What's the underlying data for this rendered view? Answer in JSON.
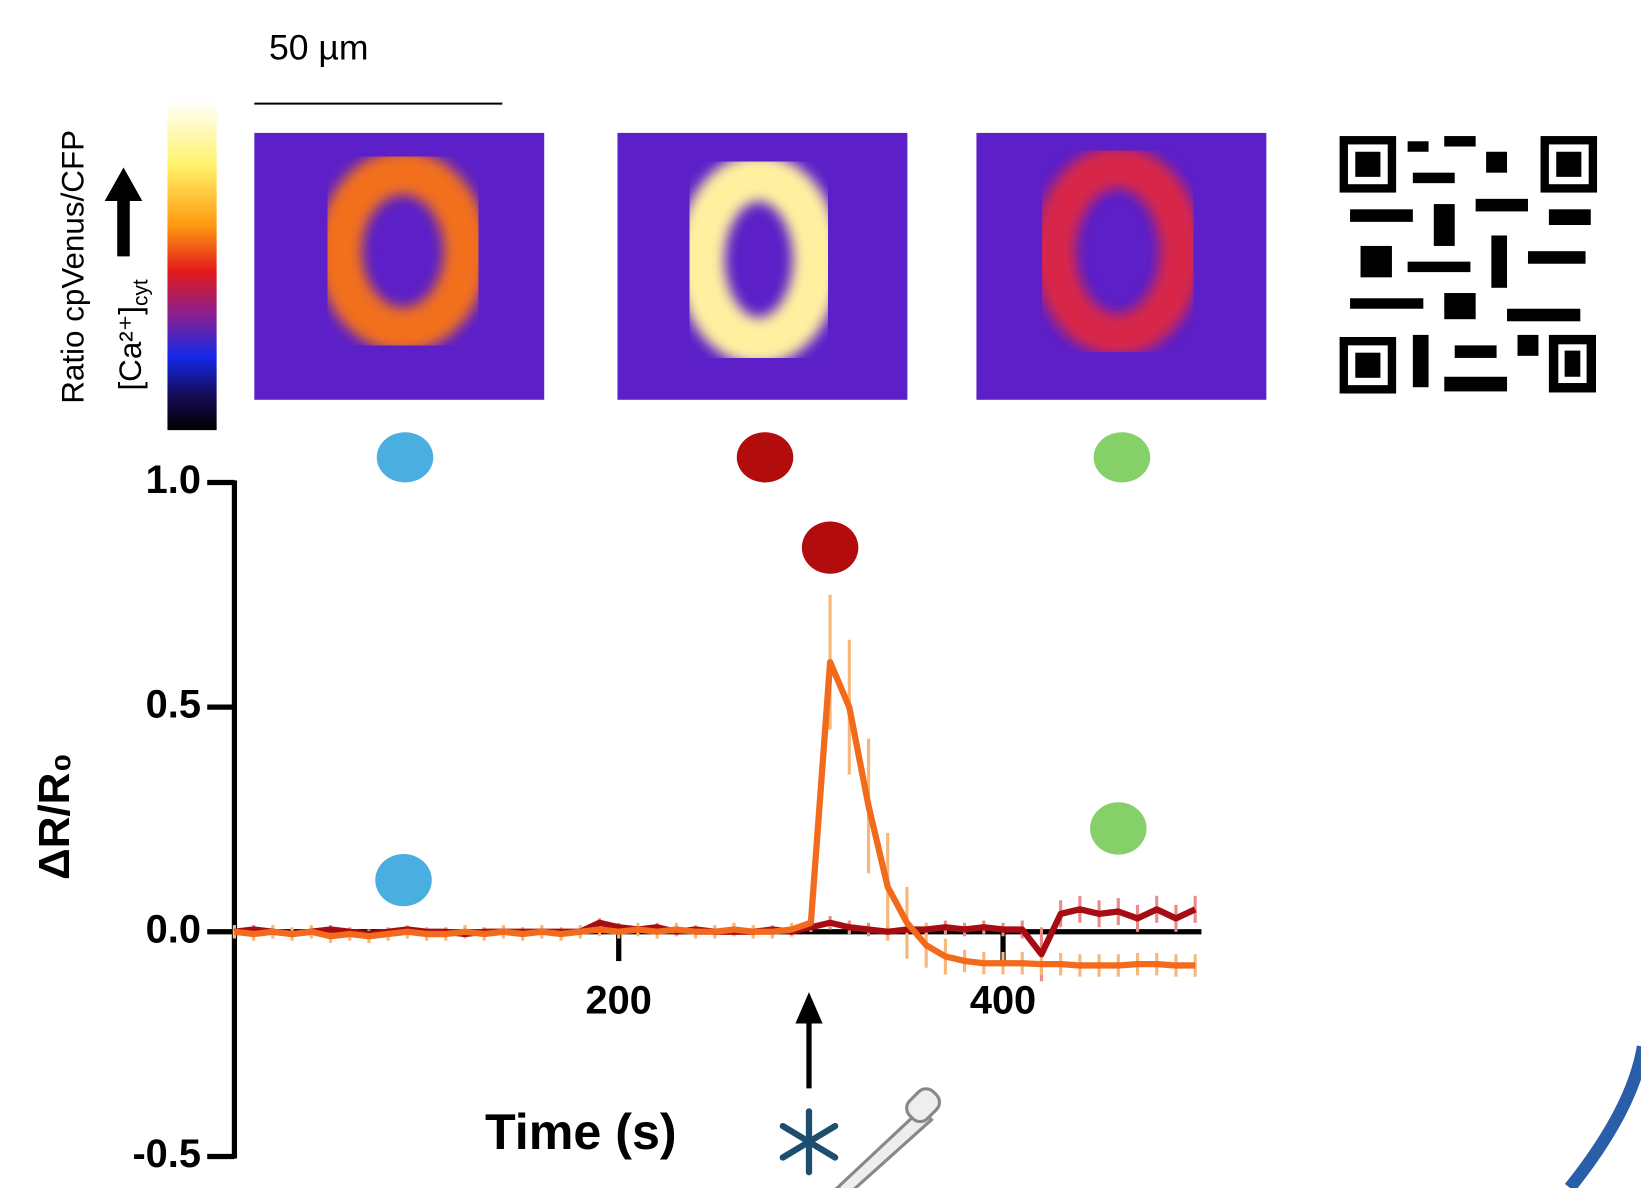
{
  "scale_bar_label": "50 µm",
  "colorbar_label": "Ratio cpVenus/CFP",
  "colorbar_sublabel": {
    "text": "[Ca²⁺]",
    "subscript": "cyt"
  },
  "chart_data": {
    "type": "line",
    "xlabel": "Time (s)",
    "ylabel": "ΔR/R₀",
    "xlim": [
      0,
      500
    ],
    "xticks": [
      200,
      400
    ],
    "ylim": [
      -0.5,
      1.0
    ],
    "yticks": [
      {
        "value": 1.0,
        "label": "1.0"
      },
      0.5,
      {
        "value": 0.0,
        "label": "0.0"
      },
      -0.5
    ],
    "x": [
      0,
      10,
      20,
      30,
      40,
      50,
      60,
      70,
      80,
      90,
      100,
      110,
      120,
      130,
      140,
      150,
      160,
      170,
      180,
      190,
      200,
      210,
      220,
      230,
      240,
      250,
      260,
      270,
      280,
      290,
      300,
      310,
      320,
      330,
      340,
      350,
      360,
      370,
      380,
      390,
      400,
      410,
      420,
      430,
      440,
      450,
      460,
      470,
      480,
      490,
      500
    ],
    "series": [
      {
        "color": "#a50d12",
        "error_color": "#ea8c8c",
        "values": [
          0,
          0.005,
          0,
          -0.005,
          0,
          0.005,
          0,
          -0.005,
          0,
          0.005,
          0,
          0,
          -0.005,
          0,
          0,
          0,
          0,
          0,
          0,
          0.02,
          0.01,
          0.005,
          0.01,
          0,
          0.005,
          0,
          0,
          0,
          0.005,
          0,
          0.01,
          0.02,
          0.01,
          0.005,
          0,
          0.005,
          0.005,
          0.01,
          0.005,
          0.01,
          0.005,
          0.005,
          -0.05,
          0.04,
          0.05,
          0.04,
          0.045,
          0.03,
          0.05,
          0.03,
          0.05
        ],
        "errors": [
          0.01,
          0.01,
          0.01,
          0.01,
          0.01,
          0.01,
          0.01,
          0.01,
          0.01,
          0.01,
          0.01,
          0.01,
          0.01,
          0.01,
          0.01,
          0.01,
          0.01,
          0.01,
          0.01,
          0.01,
          0.01,
          0.01,
          0.01,
          0.01,
          0.01,
          0.01,
          0.01,
          0.01,
          0.01,
          0.01,
          0.01,
          0.015,
          0.015,
          0.015,
          0.015,
          0.015,
          0.015,
          0.015,
          0.015,
          0.015,
          0.015,
          0.02,
          0.06,
          0.03,
          0.03,
          0.03,
          0.03,
          0.03,
          0.03,
          0.03,
          0.03
        ]
      },
      {
        "color": "#f26a1b",
        "error_color": "#f7b77a",
        "values": [
          0,
          -0.005,
          0,
          -0.005,
          0,
          -0.01,
          -0.005,
          -0.01,
          -0.005,
          0,
          -0.005,
          -0.005,
          0,
          -0.005,
          0,
          -0.005,
          0,
          -0.005,
          0,
          0.005,
          0,
          0.005,
          0,
          0.005,
          0,
          0,
          0.005,
          0,
          0,
          0.005,
          0.02,
          0.6,
          0.5,
          0.28,
          0.1,
          0.02,
          -0.03,
          -0.055,
          -0.065,
          -0.07,
          -0.07,
          -0.07,
          -0.072,
          -0.072,
          -0.075,
          -0.075,
          -0.075,
          -0.072,
          -0.072,
          -0.075,
          -0.075
        ],
        "errors": [
          0.015,
          0.015,
          0.015,
          0.015,
          0.015,
          0.015,
          0.015,
          0.015,
          0.015,
          0.015,
          0.015,
          0.015,
          0.015,
          0.015,
          0.015,
          0.015,
          0.015,
          0.015,
          0.015,
          0.015,
          0.015,
          0.015,
          0.015,
          0.015,
          0.015,
          0.015,
          0.015,
          0.015,
          0.015,
          0.015,
          0.02,
          0.15,
          0.15,
          0.15,
          0.12,
          0.08,
          0.05,
          0.04,
          0.025,
          0.025,
          0.025,
          0.025,
          0.025,
          0.025,
          0.025,
          0.025,
          0.025,
          0.025,
          0.025,
          0.025,
          0.025
        ]
      }
    ],
    "markers": [
      {
        "x": 88,
        "y": 0.115,
        "color": "#4aaee0"
      },
      {
        "x": 310,
        "y": 0.855,
        "color": "#b30c0c"
      },
      {
        "x": 460,
        "y": 0.23,
        "color": "#86d06a"
      }
    ]
  }
}
